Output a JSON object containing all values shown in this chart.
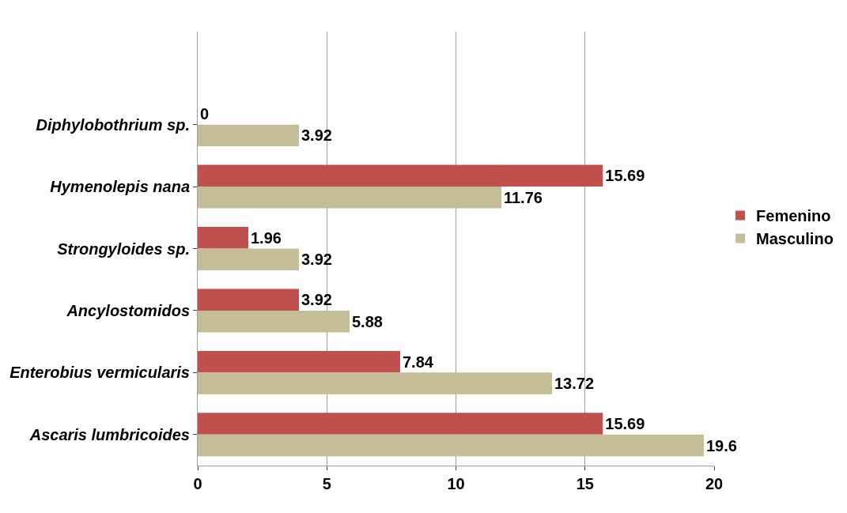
{
  "chart_data": {
    "type": "bar",
    "orientation": "horizontal",
    "categories": [
      "Diphylobothrium sp.",
      "Hymenolepis nana",
      "Strongyloides sp.",
      "Ancylostomidos",
      "Enterobius vermicularis",
      "Ascaris lumbricoides"
    ],
    "series": [
      {
        "name": "Femenino",
        "color": "#c0504d",
        "values": [
          0,
          15.69,
          1.96,
          3.92,
          7.84,
          15.69
        ]
      },
      {
        "name": "Masculino",
        "color": "#c4bd97",
        "values": [
          3.92,
          11.76,
          3.92,
          5.88,
          13.72,
          19.6
        ]
      }
    ],
    "xlim": [
      0,
      20
    ],
    "xticks": [
      0,
      5,
      10,
      15,
      20
    ],
    "grid": "x",
    "legend": "right",
    "data_labels": true
  }
}
